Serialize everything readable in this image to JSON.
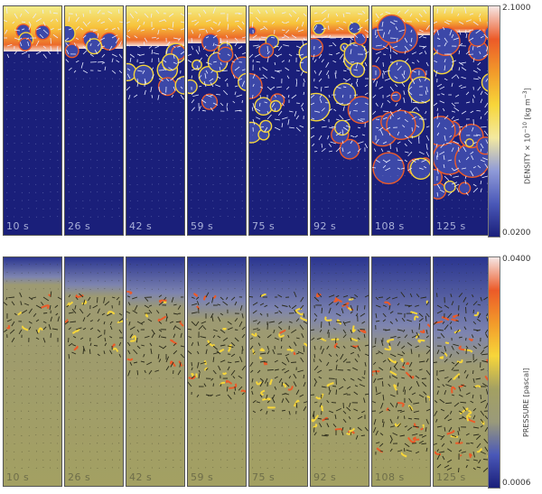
{
  "density_panel": {
    "time_labels": [
      "10 s",
      "26 s",
      "42 s",
      "59 s",
      "75 s",
      "92 s",
      "108 s",
      "125 s"
    ],
    "colorbar": {
      "title": "DENSITY × 10",
      "exponent": "−10",
      "unit": "[kg m",
      "unit_exp": "−3",
      "unit_close": "]",
      "max_label": "2.1000",
      "min_label": "0.0200",
      "colors": [
        "#1a1f7a",
        "#4a58b8",
        "#8f9ad8",
        "#f3e9a0",
        "#f7d63a",
        "#f29a2a",
        "#ec5a28",
        "#f6e6e4"
      ]
    }
  },
  "pressure_panel": {
    "time_labels": [
      "10 s",
      "26 s",
      "42 s",
      "59 s",
      "75 s",
      "92 s",
      "108 s",
      "125 s"
    ],
    "colorbar": {
      "title": "PRESSURE [pascal]",
      "max_label": "0.0400",
      "min_label": "0.0006",
      "colors": [
        "#1a1f7a",
        "#4a58b8",
        "#9a9a7a",
        "#a3a062",
        "#f7d63a",
        "#f29a2a",
        "#ec5a28",
        "#f6e6e4"
      ]
    }
  }
}
